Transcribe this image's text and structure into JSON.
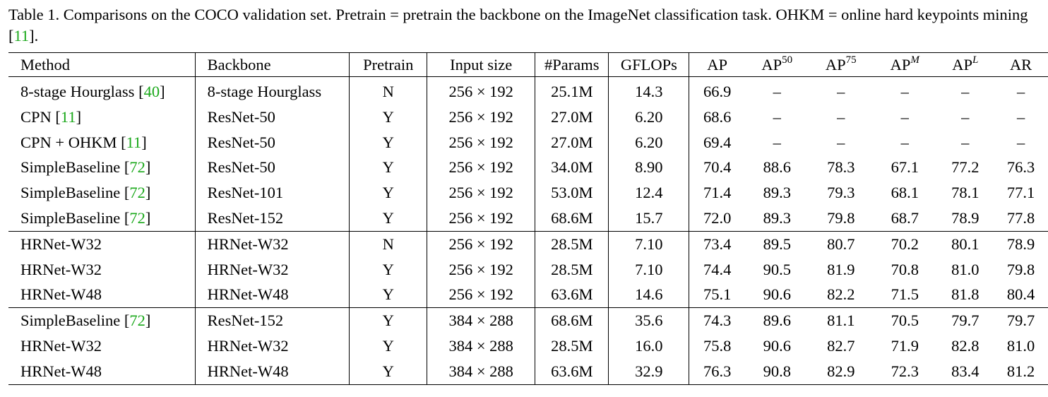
{
  "caption": {
    "text_before_cite": "Table 1. Comparisons on the COCO validation set. Pretrain = pretrain the backbone on the ImageNet classification task. OHKM = online hard keypoints mining [",
    "cite": "11",
    "text_after_cite": "]."
  },
  "headers": {
    "method": "Method",
    "backbone": "Backbone",
    "pretrain": "Pretrain",
    "input_size": "Input size",
    "params": "#Params",
    "gflops": "GFLOPs",
    "ap": "AP",
    "ap50_base": "AP",
    "ap50_sup": "50",
    "ap75_base": "AP",
    "ap75_sup": "75",
    "apm_base": "AP",
    "apm_sup": "M",
    "apl_base": "AP",
    "apl_sup": "L",
    "ar": "AR"
  },
  "groups": [
    [
      {
        "method": "8-stage Hourglass",
        "cite": "40",
        "backbone": "8-stage Hourglass",
        "pretrain": "N",
        "input_size": "256 × 192",
        "params": "25.1M",
        "gflops": "14.3",
        "ap": "66.9",
        "ap50": "–",
        "ap75": "–",
        "apm": "–",
        "apl": "–",
        "ar": "–"
      },
      {
        "method": "CPN",
        "cite": "11",
        "backbone": "ResNet-50",
        "pretrain": "Y",
        "input_size": "256 × 192",
        "params": "27.0M",
        "gflops": "6.20",
        "ap": "68.6",
        "ap50": "–",
        "ap75": "–",
        "apm": "–",
        "apl": "–",
        "ar": "–"
      },
      {
        "method": "CPN + OHKM",
        "cite": "11",
        "backbone": "ResNet-50",
        "pretrain": "Y",
        "input_size": "256 × 192",
        "params": "27.0M",
        "gflops": "6.20",
        "ap": "69.4",
        "ap50": "–",
        "ap75": "–",
        "apm": "–",
        "apl": "–",
        "ar": "–"
      },
      {
        "method": "SimpleBaseline",
        "cite": "72",
        "backbone": "ResNet-50",
        "pretrain": "Y",
        "input_size": "256 × 192",
        "params": "34.0M",
        "gflops": "8.90",
        "ap": "70.4",
        "ap50": "88.6",
        "ap75": "78.3",
        "apm": "67.1",
        "apl": "77.2",
        "ar": "76.3"
      },
      {
        "method": "SimpleBaseline",
        "cite": "72",
        "backbone": "ResNet-101",
        "pretrain": "Y",
        "input_size": "256 × 192",
        "params": "53.0M",
        "gflops": "12.4",
        "ap": "71.4",
        "ap50": "89.3",
        "ap75": "79.3",
        "apm": "68.1",
        "apl": "78.1",
        "ar": "77.1"
      },
      {
        "method": "SimpleBaseline",
        "cite": "72",
        "backbone": "ResNet-152",
        "pretrain": "Y",
        "input_size": "256 × 192",
        "params": "68.6M",
        "gflops": "15.7",
        "ap": "72.0",
        "ap50": "89.3",
        "ap75": "79.8",
        "apm": "68.7",
        "apl": "78.9",
        "ar": "77.8"
      }
    ],
    [
      {
        "method": "HRNet-W32",
        "cite": "",
        "backbone": "HRNet-W32",
        "pretrain": "N",
        "input_size": "256 × 192",
        "params": "28.5M",
        "gflops": "7.10",
        "ap": "73.4",
        "ap50": "89.5",
        "ap75": "80.7",
        "apm": "70.2",
        "apl": "80.1",
        "ar": "78.9"
      },
      {
        "method": "HRNet-W32",
        "cite": "",
        "backbone": "HRNet-W32",
        "pretrain": "Y",
        "input_size": "256 × 192",
        "params": "28.5M",
        "gflops": "7.10",
        "ap": "74.4",
        "ap50": "90.5",
        "ap75": "81.9",
        "apm": "70.8",
        "apl": "81.0",
        "ar": "79.8"
      },
      {
        "method": "HRNet-W48",
        "cite": "",
        "backbone": "HRNet-W48",
        "pretrain": "Y",
        "input_size": "256 × 192",
        "params": "63.6M",
        "gflops": "14.6",
        "ap": "75.1",
        "ap50": "90.6",
        "ap75": "82.2",
        "apm": "71.5",
        "apl": "81.8",
        "ar": "80.4"
      }
    ],
    [
      {
        "method": "SimpleBaseline",
        "cite": "72",
        "backbone": "ResNet-152",
        "pretrain": "Y",
        "input_size": "384 × 288",
        "params": "68.6M",
        "gflops": "35.6",
        "ap": "74.3",
        "ap50": "89.6",
        "ap75": "81.1",
        "apm": "70.5",
        "apl": "79.7",
        "ar": "79.7"
      },
      {
        "method": "HRNet-W32",
        "cite": "",
        "backbone": "HRNet-W32",
        "pretrain": "Y",
        "input_size": "384 × 288",
        "params": "28.5M",
        "gflops": "16.0",
        "ap": "75.8",
        "ap50": "90.6",
        "ap75": "82.7",
        "apm": "71.9",
        "apl": "82.8",
        "ar": "81.0"
      },
      {
        "method": "HRNet-W48",
        "cite": "",
        "backbone": "HRNet-W48",
        "pretrain": "Y",
        "input_size": "384 × 288",
        "params": "63.6M",
        "gflops": "32.9",
        "ap": "76.3",
        "ap50": "90.8",
        "ap75": "82.9",
        "apm": "72.3",
        "apl": "83.4",
        "ar": "81.2",
        "bold_metrics": true
      }
    ]
  ]
}
